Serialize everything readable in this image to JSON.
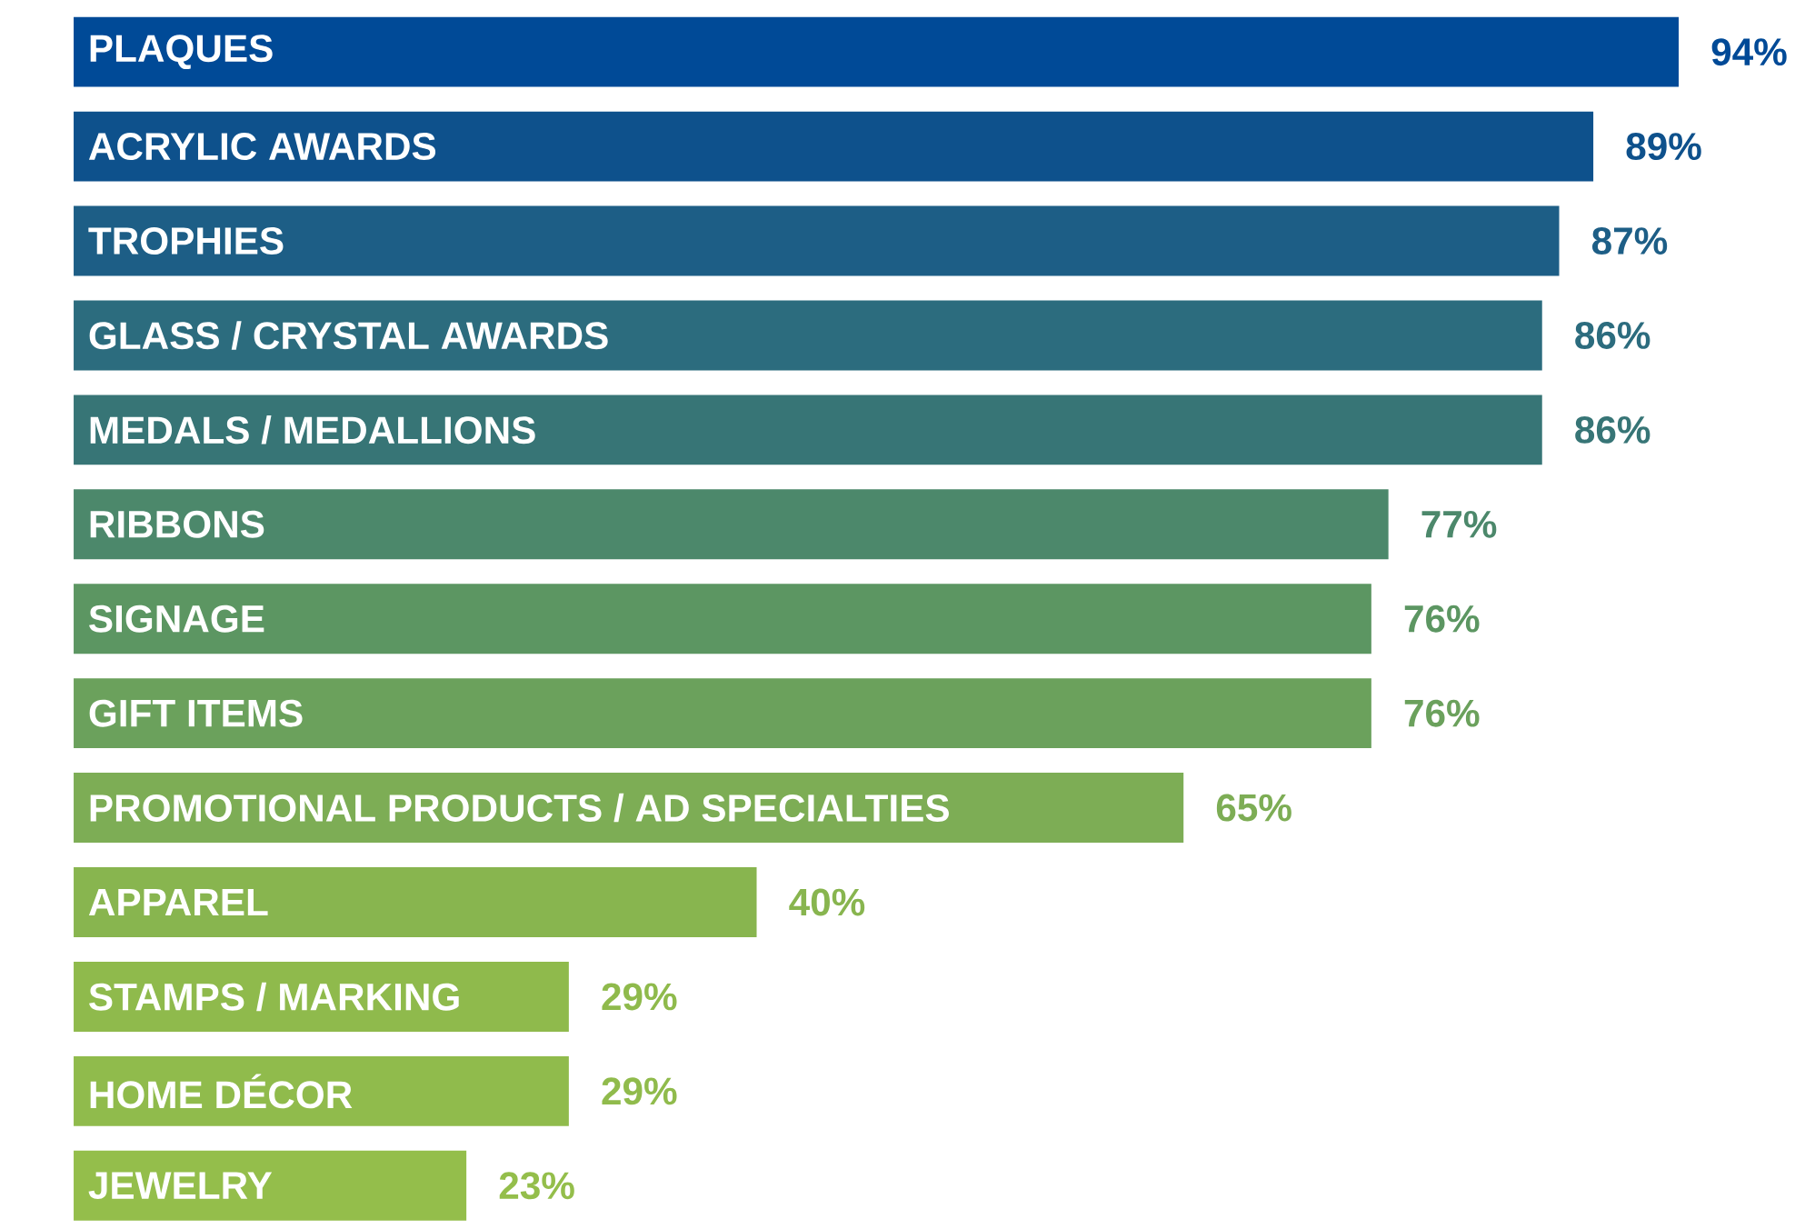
{
  "chart_data": {
    "type": "bar",
    "orientation": "horizontal",
    "categories": [
      "PLAQUES",
      "ACRYLIC AWARDS",
      "TROPHIES",
      "GLASS / CRYSTAL AWARDS",
      "MEDALS / MEDALLIONS",
      "RIBBONS",
      "SIGNAGE",
      "GIFT ITEMS",
      "PROMOTIONAL PRODUCTS / AD SPECIALTIES",
      "APPAREL",
      "STAMPS / MARKING",
      "HOME DÉCOR",
      "JEWELRY"
    ],
    "values": [
      94,
      89,
      87,
      86,
      86,
      77,
      76,
      76,
      65,
      40,
      29,
      29,
      23
    ],
    "value_labels": [
      "94%",
      "89%",
      "87%",
      "86%",
      "86%",
      "77%",
      "76%",
      "76%",
      "65%",
      "40%",
      "29%",
      "29%",
      "23%"
    ],
    "colors": [
      "#004a97",
      "#0e518c",
      "#1d5e86",
      "#2c6c7e",
      "#377576",
      "#4c886b",
      "#5c9662",
      "#6ba15c",
      "#7dad55",
      "#88b54f",
      "#8fba4c",
      "#90bb4c",
      "#94be4b"
    ]
  }
}
